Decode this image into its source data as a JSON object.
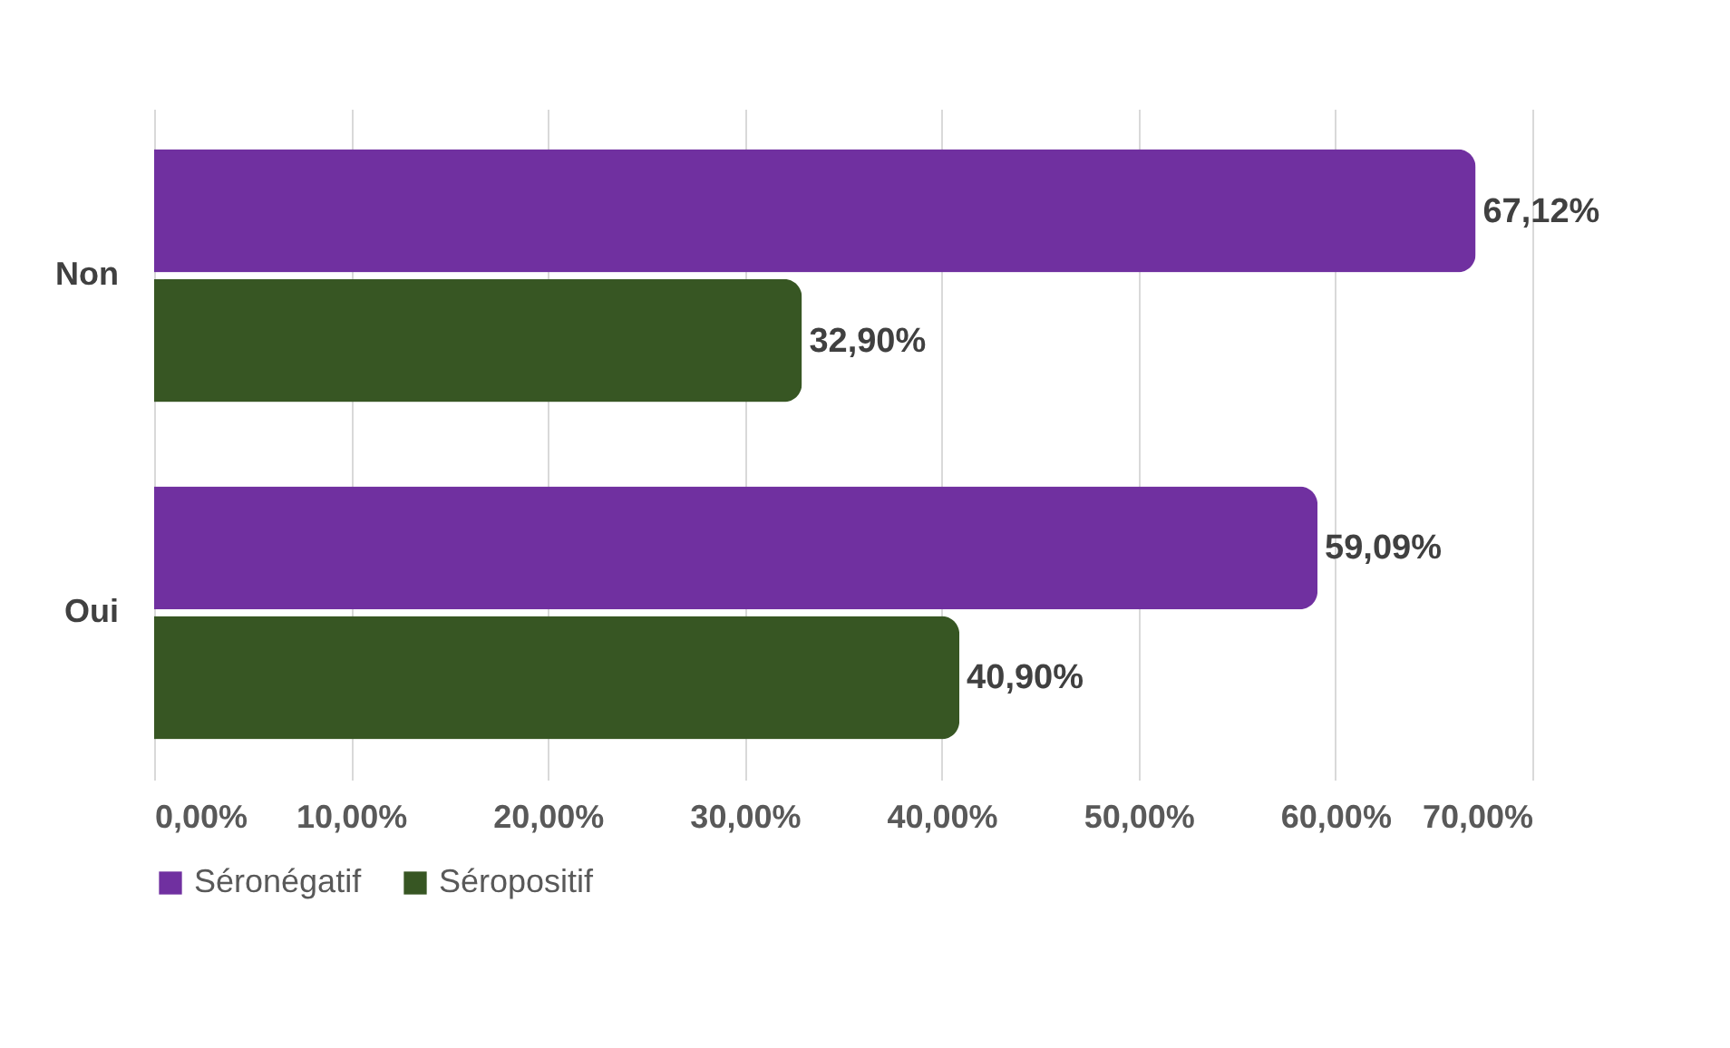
{
  "chart_data": {
    "type": "bar",
    "orientation": "horizontal",
    "categories": [
      "Non",
      "Oui"
    ],
    "series": [
      {
        "name": "Séronégatif",
        "color": "#7030a0",
        "values": [
          67.12,
          59.09
        ],
        "value_labels": [
          "67,12%",
          "59,09%"
        ]
      },
      {
        "name": "Séropositif",
        "color": "#375623",
        "values": [
          32.9,
          40.9
        ],
        "value_labels": [
          "32,90%",
          "40,90%"
        ]
      }
    ],
    "xlim": [
      0,
      70
    ],
    "xticks": [
      {
        "value": 0,
        "label": "0,00%"
      },
      {
        "value": 10,
        "label": "10,00%"
      },
      {
        "value": 20,
        "label": "20,00%"
      },
      {
        "value": 30,
        "label": "30,00%"
      },
      {
        "value": 40,
        "label": "40,00%"
      },
      {
        "value": 50,
        "label": "50,00%"
      },
      {
        "value": 60,
        "label": "60,00%"
      },
      {
        "value": 70,
        "label": "70,00%"
      }
    ],
    "grid": "x",
    "legend": "bottom"
  }
}
